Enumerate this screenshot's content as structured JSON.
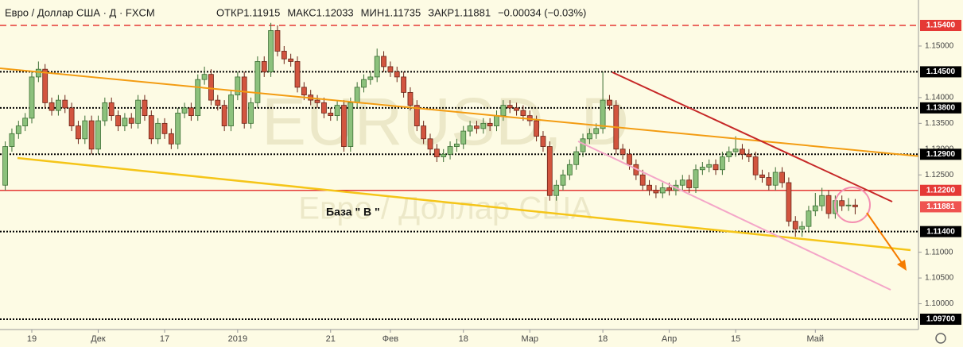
{
  "chart_data": {
    "type": "candlestick",
    "title": "Евро / Доллар США · Д · FXCM",
    "stats": [
      {
        "label": "ОТКР",
        "value": "1.11915"
      },
      {
        "label": "МАКС",
        "value": "1.12033"
      },
      {
        "label": "МИН",
        "value": "1.11735"
      },
      {
        "label": "ЗАКР",
        "value": "1.11881"
      },
      {
        "label": "",
        "value": "−0.00034 (−0.03%)"
      }
    ],
    "watermark": [
      "EURUSD, D",
      "Евро / Доллар США"
    ],
    "annotation": "База  \" В \"",
    "categories": [
      null,
      null,
      null,
      null,
      "19",
      null,
      null,
      null,
      null,
      null,
      null,
      null,
      null,
      null,
      "Дек",
      null,
      null,
      null,
      null,
      null,
      null,
      null,
      null,
      null,
      "17",
      null,
      null,
      null,
      null,
      null,
      null,
      null,
      null,
      null,
      null,
      "2019",
      null,
      null,
      null,
      null,
      null,
      null,
      null,
      null,
      null,
      null,
      null,
      null,
      null,
      "21",
      null,
      null,
      null,
      null,
      null,
      null,
      null,
      null,
      "Фев",
      null,
      null,
      null,
      null,
      null,
      null,
      null,
      null,
      null,
      null,
      "18",
      null,
      null,
      null,
      null,
      null,
      null,
      null,
      null,
      null,
      "Мар",
      null,
      null,
      null,
      null,
      null,
      null,
      null,
      null,
      null,
      null,
      "18",
      null,
      null,
      null,
      null,
      null,
      null,
      null,
      null,
      null,
      "Апр",
      null,
      null,
      null,
      null,
      null,
      null,
      null,
      null,
      null,
      "15",
      null,
      null,
      null,
      null,
      null,
      null,
      null,
      null,
      null,
      null,
      null,
      "Май",
      null,
      null,
      null,
      null,
      null,
      null
    ],
    "open": [
      1.123,
      1.1305,
      1.133,
      1.1345,
      1.136,
      1.144,
      1.1455,
      1.139,
      1.1375,
      1.1395,
      1.138,
      1.1345,
      1.132,
      1.1355,
      1.13,
      1.1355,
      1.139,
      1.1365,
      1.1345,
      1.136,
      1.135,
      1.1395,
      1.1365,
      1.132,
      1.135,
      1.133,
      1.131,
      1.137,
      1.138,
      1.1365,
      1.1435,
      1.1445,
      1.1395,
      1.1385,
      1.1345,
      1.1405,
      1.144,
      1.135,
      1.139,
      1.147,
      1.145,
      1.153,
      1.149,
      1.1475,
      1.147,
      1.142,
      1.1405,
      1.1395,
      1.139,
      1.137,
      1.1365,
      1.1385,
      1.1305,
      1.139,
      1.142,
      1.1435,
      1.144,
      1.148,
      1.146,
      1.145,
      1.144,
      1.141,
      1.1385,
      1.1345,
      1.132,
      1.13,
      1.1285,
      1.129,
      1.1305,
      1.131,
      1.1335,
      1.1345,
      1.134,
      1.135,
      1.1345,
      1.1365,
      1.1385,
      1.138,
      1.1375,
      1.1365,
      1.1355,
      1.1325,
      1.1305,
      1.121,
      1.123,
      1.125,
      1.127,
      1.1295,
      1.132,
      1.133,
      1.134,
      1.1395,
      1.1385,
      1.13,
      1.129,
      1.127,
      1.125,
      1.123,
      1.122,
      1.1215,
      1.1225,
      1.122,
      1.123,
      1.124,
      1.1225,
      1.126,
      1.1265,
      1.127,
      1.126,
      1.1285,
      1.1295,
      1.13,
      1.129,
      1.1285,
      1.125,
      1.1245,
      1.123,
      1.1255,
      1.1235,
      1.116,
      1.1145,
      1.115,
      1.118,
      1.119,
      1.121,
      1.1175,
      1.12,
      1.119,
      1.11915
    ],
    "high": [
      1.1315,
      1.134,
      1.1355,
      1.137,
      1.145,
      1.147,
      1.1465,
      1.14,
      1.1405,
      1.1405,
      1.139,
      1.1355,
      1.1365,
      1.1365,
      1.1365,
      1.14,
      1.14,
      1.1375,
      1.137,
      1.137,
      1.1405,
      1.1405,
      1.1375,
      1.136,
      1.136,
      1.134,
      1.138,
      1.139,
      1.139,
      1.1445,
      1.146,
      1.1455,
      1.1405,
      1.1395,
      1.1415,
      1.145,
      1.145,
      1.14,
      1.148,
      1.148,
      1.1545,
      1.154,
      1.15,
      1.1485,
      1.148,
      1.143,
      1.1415,
      1.1405,
      1.14,
      1.138,
      1.1395,
      1.1395,
      1.14,
      1.143,
      1.1445,
      1.145,
      1.1495,
      1.149,
      1.147,
      1.146,
      1.145,
      1.142,
      1.1395,
      1.1355,
      1.133,
      1.131,
      1.13,
      1.1315,
      1.132,
      1.1345,
      1.1355,
      1.1355,
      1.136,
      1.136,
      1.1375,
      1.1395,
      1.1395,
      1.139,
      1.1385,
      1.1375,
      1.1365,
      1.1335,
      1.1315,
      1.124,
      1.126,
      1.128,
      1.1305,
      1.133,
      1.134,
      1.135,
      1.145,
      1.1405,
      1.1395,
      1.131,
      1.13,
      1.128,
      1.126,
      1.124,
      1.123,
      1.1235,
      1.1235,
      1.124,
      1.125,
      1.125,
      1.127,
      1.1275,
      1.128,
      1.128,
      1.1295,
      1.1305,
      1.1325,
      1.131,
      1.13,
      1.1295,
      1.126,
      1.1255,
      1.1265,
      1.1265,
      1.1245,
      1.117,
      1.116,
      1.119,
      1.1215,
      1.1225,
      1.122,
      1.121,
      1.121,
      1.1205,
      1.12033
    ],
    "low": [
      1.122,
      1.1295,
      1.132,
      1.1335,
      1.135,
      1.143,
      1.138,
      1.1365,
      1.1365,
      1.137,
      1.1335,
      1.131,
      1.131,
      1.129,
      1.129,
      1.1345,
      1.1355,
      1.1335,
      1.1335,
      1.134,
      1.134,
      1.1355,
      1.131,
      1.131,
      1.132,
      1.13,
      1.13,
      1.136,
      1.1355,
      1.1355,
      1.1425,
      1.1385,
      1.1375,
      1.1335,
      1.1335,
      1.1395,
      1.134,
      1.134,
      1.138,
      1.144,
      1.144,
      1.148,
      1.1465,
      1.146,
      1.141,
      1.1395,
      1.1385,
      1.138,
      1.136,
      1.1355,
      1.1355,
      1.1295,
      1.1295,
      1.138,
      1.141,
      1.1425,
      1.143,
      1.145,
      1.144,
      1.143,
      1.14,
      1.1375,
      1.1335,
      1.131,
      1.129,
      1.1275,
      1.1275,
      1.128,
      1.1295,
      1.13,
      1.1325,
      1.133,
      1.133,
      1.1335,
      1.1335,
      1.1355,
      1.137,
      1.1365,
      1.1355,
      1.1345,
      1.1315,
      1.1295,
      1.12,
      1.12,
      1.122,
      1.124,
      1.126,
      1.1285,
      1.131,
      1.132,
      1.133,
      1.1375,
      1.129,
      1.128,
      1.126,
      1.124,
      1.122,
      1.121,
      1.1205,
      1.1205,
      1.121,
      1.121,
      1.122,
      1.1215,
      1.1215,
      1.125,
      1.1255,
      1.125,
      1.125,
      1.1275,
      1.1285,
      1.128,
      1.1275,
      1.124,
      1.1235,
      1.122,
      1.122,
      1.1225,
      1.115,
      1.113,
      1.113,
      1.114,
      1.117,
      1.118,
      1.1165,
      1.1165,
      1.118,
      1.118,
      1.11735
    ],
    "close": [
      1.1305,
      1.133,
      1.1345,
      1.136,
      1.144,
      1.1455,
      1.139,
      1.1375,
      1.1395,
      1.138,
      1.1345,
      1.132,
      1.1355,
      1.13,
      1.1355,
      1.139,
      1.1365,
      1.1345,
      1.136,
      1.135,
      1.1395,
      1.1365,
      1.132,
      1.135,
      1.133,
      1.131,
      1.137,
      1.138,
      1.1365,
      1.1435,
      1.1445,
      1.1395,
      1.1385,
      1.1345,
      1.1405,
      1.144,
      1.135,
      1.139,
      1.147,
      1.145,
      1.153,
      1.149,
      1.1475,
      1.147,
      1.142,
      1.1405,
      1.1395,
      1.139,
      1.137,
      1.1365,
      1.1385,
      1.1305,
      1.139,
      1.142,
      1.1435,
      1.144,
      1.148,
      1.146,
      1.145,
      1.144,
      1.141,
      1.1385,
      1.1345,
      1.132,
      1.13,
      1.1285,
      1.129,
      1.1305,
      1.131,
      1.1335,
      1.1345,
      1.134,
      1.135,
      1.1345,
      1.1365,
      1.1385,
      1.138,
      1.1375,
      1.1365,
      1.1355,
      1.1325,
      1.1305,
      1.121,
      1.123,
      1.125,
      1.127,
      1.1295,
      1.132,
      1.133,
      1.134,
      1.1395,
      1.1385,
      1.13,
      1.129,
      1.127,
      1.125,
      1.123,
      1.122,
      1.1215,
      1.1225,
      1.122,
      1.123,
      1.124,
      1.1225,
      1.126,
      1.1265,
      1.127,
      1.126,
      1.1285,
      1.1295,
      1.13,
      1.129,
      1.1285,
      1.125,
      1.1245,
      1.123,
      1.1255,
      1.1235,
      1.116,
      1.1145,
      1.115,
      1.118,
      1.119,
      1.121,
      1.1175,
      1.12,
      1.119,
      1.11915,
      1.11881
    ],
    "up_color": "#8cc17c",
    "down_color": "#d2553f",
    "ylim": [
      1.095,
      1.15893
    ],
    "yticks": [
      {
        "value": 1.1,
        "label": "1.10000"
      },
      {
        "value": 1.105,
        "label": "1.10500"
      },
      {
        "value": 1.11,
        "label": "1.11000"
      },
      {
        "value": 1.125,
        "label": "1.12500"
      },
      {
        "value": 1.13,
        "label": "1.13000"
      },
      {
        "value": 1.135,
        "label": "1.13500"
      },
      {
        "value": 1.14,
        "label": "1.14000"
      },
      {
        "value": 1.15,
        "label": "1.15000"
      }
    ],
    "levels": [
      {
        "value": 1.154,
        "label": "1.15400",
        "color": "#e53935",
        "style": "dashed"
      },
      {
        "value": 1.145,
        "label": "1.14500",
        "color": "#000000",
        "style": "dotted"
      },
      {
        "value": 1.138,
        "label": "1.13800",
        "color": "#000000",
        "style": "dotted"
      },
      {
        "value": 1.129,
        "label": "1.12900",
        "color": "#000000",
        "style": "dotted"
      },
      {
        "value": 1.122,
        "label": "1.12200",
        "color": "#e53935",
        "style": "solid"
      },
      {
        "value": 1.114,
        "label": "1.11400",
        "color": "#000000",
        "style": "dotted"
      },
      {
        "value": 1.097,
        "label": "1.09700",
        "color": "#000000",
        "style": "dotted"
      }
    ],
    "price_label": {
      "value": 1.11881,
      "label": "1.11881",
      "color": "#ef5350"
    }
  }
}
